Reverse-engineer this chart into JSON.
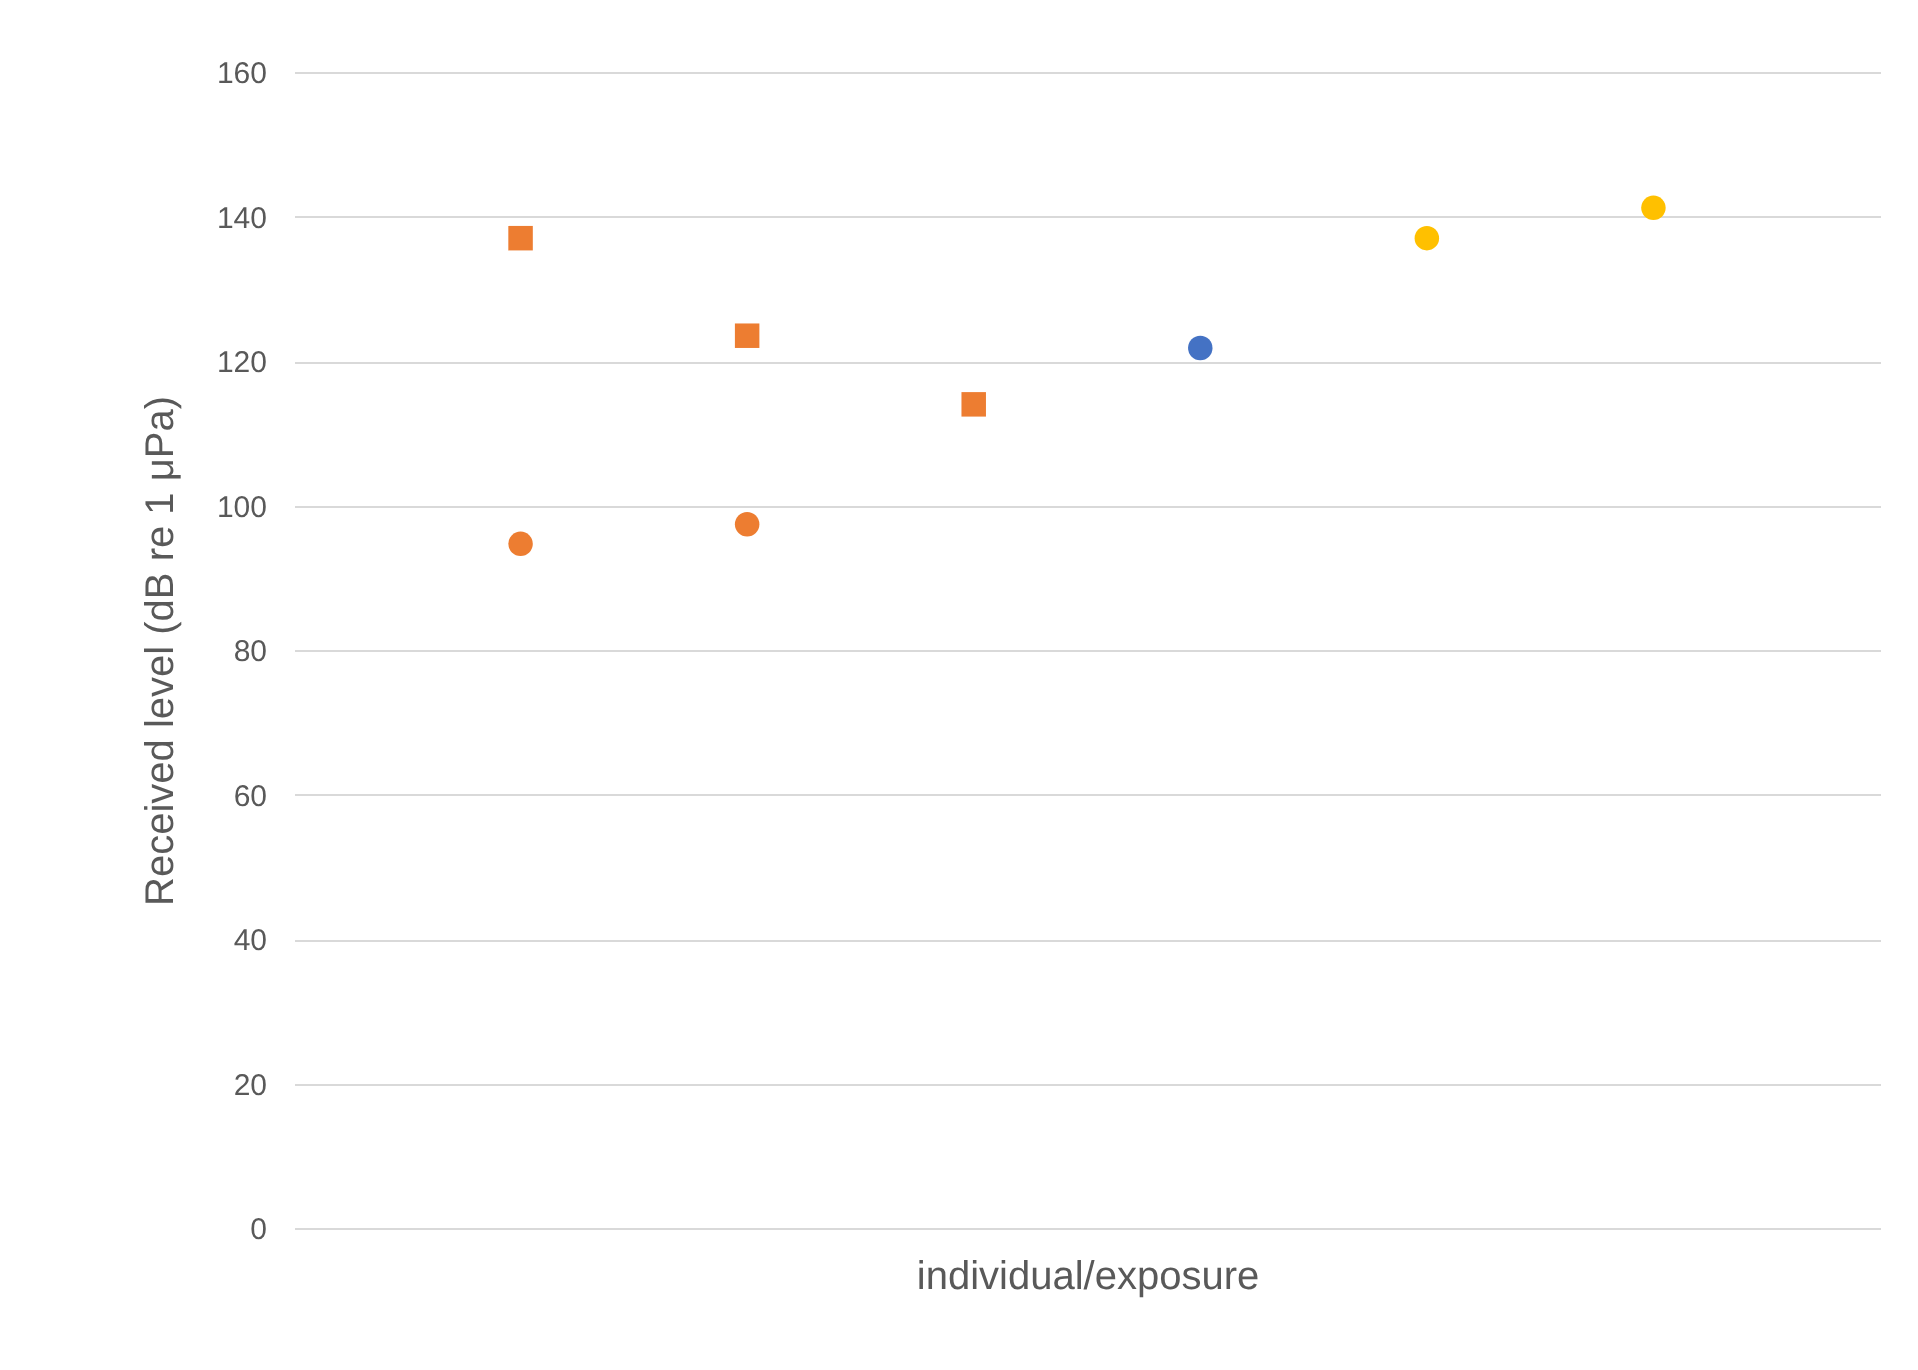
{
  "chart_data": {
    "type": "scatter",
    "xlabel": "individual/exposure",
    "ylabel": "Received level (dB re 1 μPa)",
    "categories": [
      null,
      null,
      null,
      null,
      null,
      null
    ],
    "series": [
      {
        "color": "#ed7d31",
        "marker": "square",
        "values": [
          137,
          123.5,
          114,
          null,
          null,
          null
        ]
      },
      {
        "color": "#ed7d31",
        "marker": "circle",
        "values": [
          94.7,
          97.4,
          null,
          null,
          null,
          null
        ]
      },
      {
        "color": "#4472c4",
        "marker": "circle",
        "values": [
          null,
          null,
          null,
          121.8,
          null,
          null
        ]
      },
      {
        "color": "#ffc000",
        "marker": "circle",
        "values": [
          null,
          null,
          null,
          null,
          137,
          141.2
        ]
      }
    ],
    "ylim": [
      0,
      160
    ],
    "yticks": [
      0,
      20,
      40,
      60,
      80,
      100,
      120,
      140,
      160
    ],
    "grid": "y",
    "tick_labels": "y"
  }
}
